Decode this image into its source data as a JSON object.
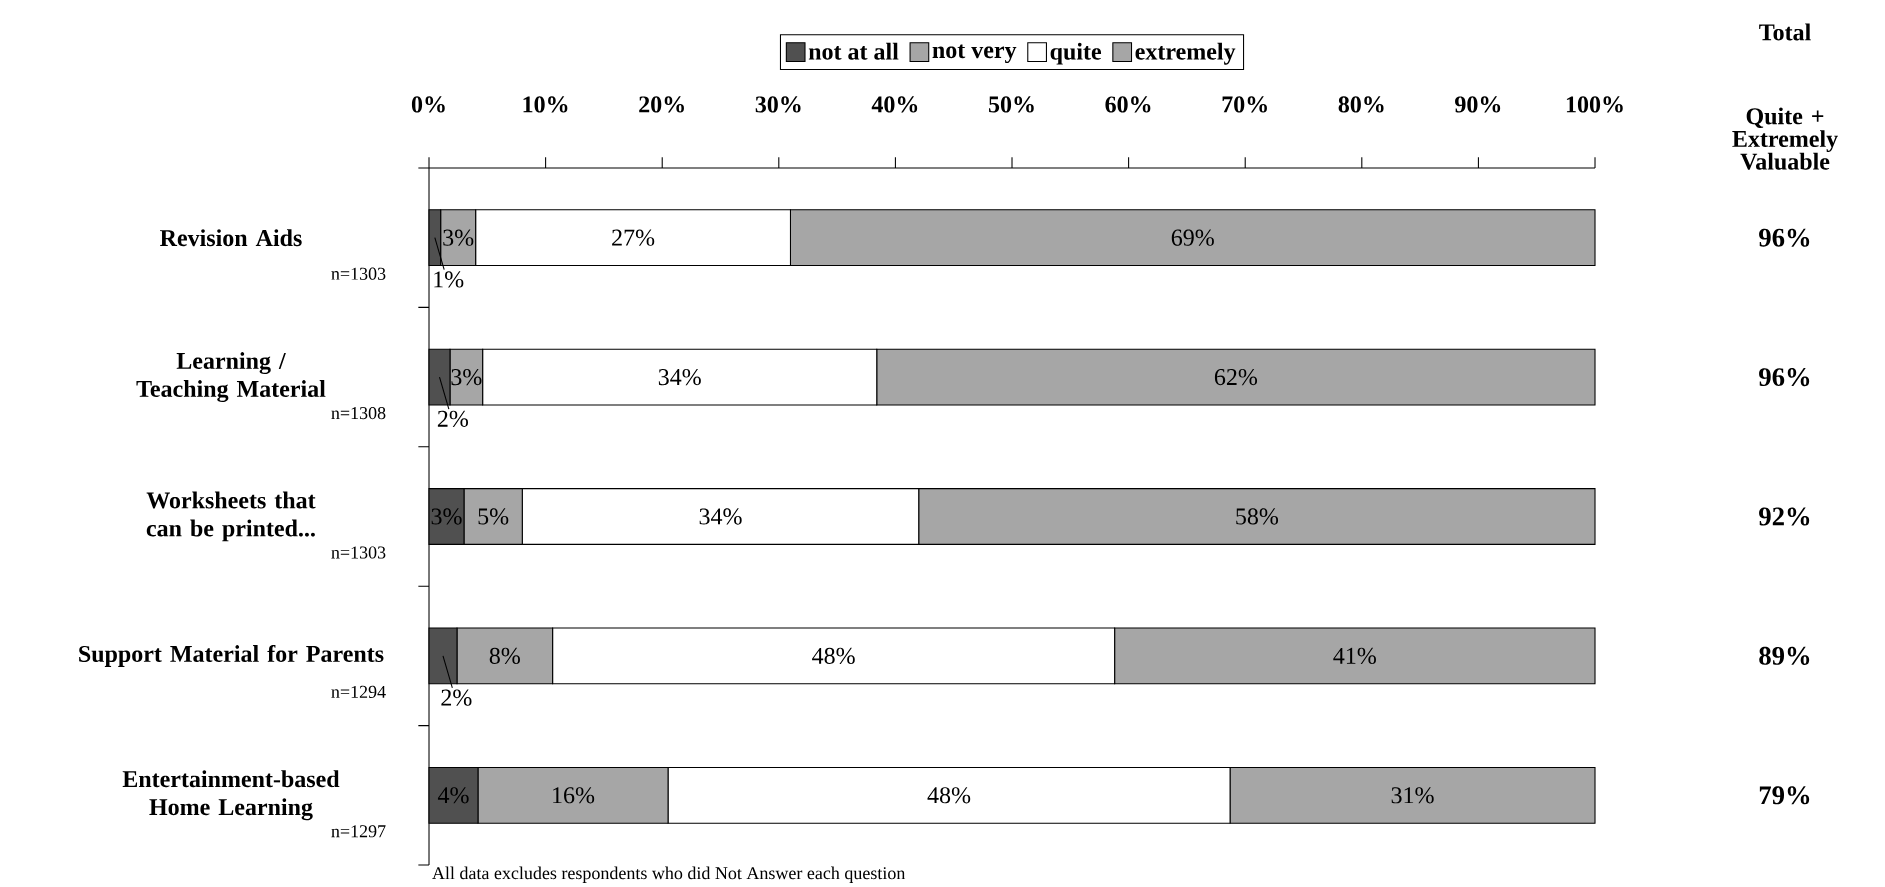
{
  "chart_data": {
    "type": "bar",
    "orientation": "horizontal",
    "stacked": true,
    "categories": [
      "Revision Aids",
      "Learning / Teaching Material",
      "Worksheets that can be printed...",
      "Support Material for Parents",
      "Entertainment-based Home Learning"
    ],
    "series": [
      {
        "name": "not at all",
        "color": "#505050",
        "values": [
          1,
          1.8,
          3,
          2.4,
          4.2
        ],
        "value_labels": [
          "1%",
          "2%",
          "3%",
          "2%",
          "4%"
        ]
      },
      {
        "name": "not very",
        "color": "#a6a6a6",
        "values": [
          3,
          2.8,
          5,
          8.2,
          16.3
        ],
        "value_labels": [
          "3%",
          "3%",
          "5%",
          "8%",
          "16%"
        ]
      },
      {
        "name": "quite",
        "color": "#ffffff",
        "values": [
          27,
          33.8,
          34,
          48.2,
          48.2
        ],
        "value_labels": [
          "27%",
          "34%",
          "34%",
          "48%",
          "48%"
        ]
      },
      {
        "name": "extremely",
        "color": "#a6a6a6",
        "values": [
          69,
          61.6,
          58,
          41.2,
          31.3
        ],
        "value_labels": [
          "69%",
          "62%",
          "58%",
          "41%",
          "31%"
        ]
      }
    ],
    "xlim": [
      0,
      100
    ],
    "xticks": [
      {
        "value": 0,
        "label": "0%"
      },
      {
        "value": 10,
        "label": "10%"
      },
      {
        "value": 20,
        "label": "20%"
      },
      {
        "value": 30,
        "label": "30%"
      },
      {
        "value": 40,
        "label": "40%"
      },
      {
        "value": 50,
        "label": "50%"
      },
      {
        "value": 60,
        "label": "60%"
      },
      {
        "value": 70,
        "label": "70%"
      },
      {
        "value": 80,
        "label": "80%"
      },
      {
        "value": 90,
        "label": "90%"
      },
      {
        "value": 100,
        "label": "100%"
      }
    ],
    "legend": "top",
    "annotations": [
      "n=1303",
      "n=1308",
      "n=1303",
      "n=1294",
      "n=1297",
      "Total",
      "Quite + Extremely Valuable",
      "All data excludes respondents who did Not Answer each question",
      "96%",
      "96%",
      "92%",
      "89%",
      "79%"
    ]
  }
}
